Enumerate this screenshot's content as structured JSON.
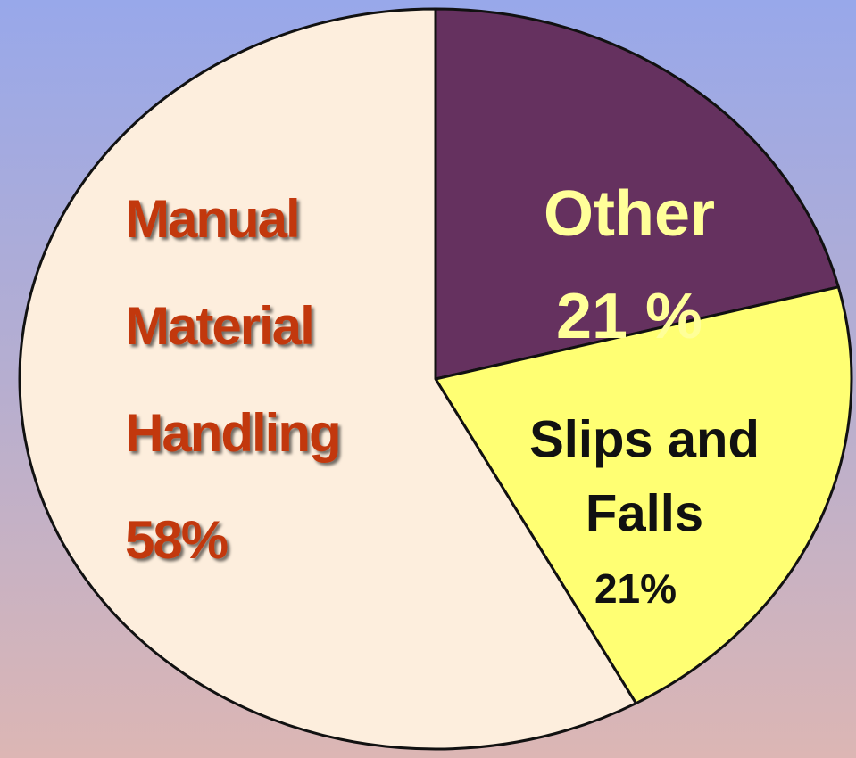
{
  "chart_data": {
    "type": "pie",
    "categories": [
      [
        "Other"
      ],
      [
        "Slips and",
        "Falls"
      ],
      [
        "Manual",
        "Material",
        "Handling"
      ]
    ],
    "values": [
      21,
      21,
      58
    ],
    "value_labels": [
      "21 %",
      "21%",
      "58%"
    ],
    "colors": [
      "#65315f",
      "#ffff73",
      "#fdeedd"
    ],
    "label_colors": [
      "#ffff99",
      "#111111",
      "#c2370b"
    ]
  }
}
